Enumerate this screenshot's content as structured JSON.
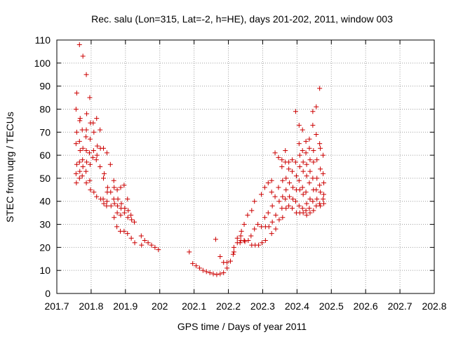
{
  "chart_data": {
    "type": "scatter",
    "title": "Rec. salu (Lon=315, Lat=-2, h=HE), days 201-202, 2011, window 003",
    "xlabel": "GPS time / Days of year 2011",
    "ylabel": "STEC from uqrg / TECUs",
    "xlim": [
      201.7,
      202.8
    ],
    "ylim": [
      0,
      110
    ],
    "xticks": [
      "201.7",
      "201.8",
      "201.9",
      "202",
      "202.1",
      "202.2",
      "202.3",
      "202.4",
      "202.5",
      "202.6",
      "202.7",
      "202.8"
    ],
    "yticks": [
      "0",
      "10",
      "20",
      "30",
      "40",
      "50",
      "60",
      "70",
      "80",
      "90",
      "100",
      "110"
    ],
    "grid": true,
    "marker": "+",
    "color": "#cc0000",
    "points": [
      [
        201.758,
        87
      ],
      [
        201.756,
        80
      ],
      [
        201.758,
        70
      ],
      [
        201.756,
        65
      ],
      [
        201.758,
        56
      ],
      [
        201.756,
        52
      ],
      [
        201.757,
        48
      ],
      [
        201.766,
        108
      ],
      [
        201.768,
        76
      ],
      [
        201.767,
        75
      ],
      [
        201.766,
        66
      ],
      [
        201.768,
        62
      ],
      [
        201.766,
        57
      ],
      [
        201.767,
        53
      ],
      [
        201.766,
        50
      ],
      [
        201.776,
        103
      ],
      [
        201.774,
        71
      ],
      [
        201.776,
        63
      ],
      [
        201.775,
        58
      ],
      [
        201.776,
        55
      ],
      [
        201.774,
        51
      ],
      [
        201.786,
        95
      ],
      [
        201.787,
        78
      ],
      [
        201.786,
        71
      ],
      [
        201.785,
        68
      ],
      [
        201.786,
        62
      ],
      [
        201.787,
        57
      ],
      [
        201.785,
        53
      ],
      [
        201.786,
        48
      ],
      [
        201.796,
        85
      ],
      [
        201.798,
        74
      ],
      [
        201.797,
        67
      ],
      [
        201.795,
        61
      ],
      [
        201.797,
        56
      ],
      [
        201.796,
        49
      ],
      [
        201.798,
        45
      ],
      [
        201.806,
        74
      ],
      [
        201.808,
        70
      ],
      [
        201.807,
        62
      ],
      [
        201.805,
        59
      ],
      [
        201.808,
        44
      ],
      [
        201.816,
        76
      ],
      [
        201.818,
        64
      ],
      [
        201.817,
        60
      ],
      [
        201.815,
        58
      ],
      [
        201.816,
        42
      ],
      [
        201.826,
        71
      ],
      [
        201.827,
        63
      ],
      [
        201.826,
        55
      ],
      [
        201.828,
        41
      ],
      [
        201.836,
        63
      ],
      [
        201.838,
        52
      ],
      [
        201.836,
        50
      ],
      [
        201.835,
        41
      ],
      [
        201.837,
        39
      ],
      [
        201.846,
        61
      ],
      [
        201.848,
        46
      ],
      [
        201.847,
        44
      ],
      [
        201.846,
        40
      ],
      [
        201.845,
        38
      ],
      [
        201.856,
        56
      ],
      [
        201.857,
        44
      ],
      [
        201.858,
        38
      ],
      [
        201.866,
        49
      ],
      [
        201.867,
        46
      ],
      [
        201.866,
        41
      ],
      [
        201.868,
        39
      ],
      [
        201.867,
        33
      ],
      [
        201.876,
        45
      ],
      [
        201.878,
        41
      ],
      [
        201.877,
        38
      ],
      [
        201.876,
        35
      ],
      [
        201.875,
        29
      ],
      [
        201.886,
        46
      ],
      [
        201.888,
        39
      ],
      [
        201.887,
        37
      ],
      [
        201.886,
        34
      ],
      [
        201.885,
        27
      ],
      [
        201.896,
        47
      ],
      [
        201.898,
        37
      ],
      [
        201.897,
        35
      ],
      [
        201.896,
        27
      ],
      [
        201.906,
        41
      ],
      [
        201.908,
        36
      ],
      [
        201.907,
        33
      ],
      [
        201.906,
        26
      ],
      [
        201.916,
        34
      ],
      [
        201.918,
        32
      ],
      [
        201.917,
        24
      ],
      [
        201.926,
        31
      ],
      [
        201.927,
        22
      ],
      [
        201.946,
        25
      ],
      [
        201.947,
        21
      ],
      [
        201.956,
        23
      ],
      [
        201.966,
        22
      ],
      [
        201.976,
        21
      ],
      [
        201.986,
        20
      ],
      [
        201.996,
        19
      ],
      [
        202.086,
        18
      ],
      [
        202.096,
        13
      ],
      [
        202.106,
        12
      ],
      [
        202.116,
        11
      ],
      [
        202.126,
        10
      ],
      [
        202.136,
        9.5
      ],
      [
        202.146,
        9
      ],
      [
        202.156,
        8.5
      ],
      [
        202.163,
        23.5
      ],
      [
        202.166,
        8.2
      ],
      [
        202.176,
        8.5
      ],
      [
        202.176,
        16
      ],
      [
        202.186,
        13.5
      ],
      [
        202.186,
        9
      ],
      [
        202.196,
        11
      ],
      [
        202.196,
        13.5
      ],
      [
        202.206,
        14
      ],
      [
        202.214,
        17
      ],
      [
        202.216,
        18
      ],
      [
        202.216,
        20
      ],
      [
        202.226,
        22
      ],
      [
        202.226,
        24
      ],
      [
        202.234,
        22
      ],
      [
        202.236,
        23
      ],
      [
        202.236,
        25
      ],
      [
        202.238,
        27
      ],
      [
        202.246,
        23
      ],
      [
        202.246,
        30
      ],
      [
        202.248,
        22.5
      ],
      [
        202.256,
        34
      ],
      [
        202.258,
        23
      ],
      [
        202.266,
        25
      ],
      [
        202.268,
        36
      ],
      [
        202.268,
        21
      ],
      [
        202.276,
        28
      ],
      [
        202.276,
        40
      ],
      [
        202.278,
        21
      ],
      [
        202.286,
        30
      ],
      [
        202.288,
        21
      ],
      [
        202.296,
        43
      ],
      [
        202.296,
        29
      ],
      [
        202.298,
        22
      ],
      [
        202.306,
        46
      ],
      [
        202.306,
        33
      ],
      [
        202.308,
        29
      ],
      [
        202.308,
        23
      ],
      [
        202.316,
        48
      ],
      [
        202.316,
        35
      ],
      [
        202.318,
        29
      ],
      [
        202.326,
        49
      ],
      [
        202.326,
        44
      ],
      [
        202.328,
        38
      ],
      [
        202.328,
        31
      ],
      [
        202.326,
        26
      ],
      [
        202.336,
        61
      ],
      [
        202.336,
        42
      ],
      [
        202.338,
        34
      ],
      [
        202.338,
        28
      ],
      [
        202.346,
        59
      ],
      [
        202.346,
        46
      ],
      [
        202.348,
        40
      ],
      [
        202.348,
        32
      ],
      [
        202.356,
        58
      ],
      [
        202.356,
        55
      ],
      [
        202.358,
        49
      ],
      [
        202.358,
        42
      ],
      [
        202.356,
        37
      ],
      [
        202.358,
        33
      ],
      [
        202.366,
        62
      ],
      [
        202.366,
        57
      ],
      [
        202.368,
        50
      ],
      [
        202.368,
        45
      ],
      [
        202.366,
        41
      ],
      [
        202.368,
        37
      ],
      [
        202.376,
        57
      ],
      [
        202.376,
        54
      ],
      [
        202.378,
        48
      ],
      [
        202.378,
        42
      ],
      [
        202.376,
        38
      ],
      [
        202.386,
        58
      ],
      [
        202.386,
        53
      ],
      [
        202.388,
        46
      ],
      [
        202.388,
        41
      ],
      [
        202.386,
        37
      ],
      [
        202.396,
        79
      ],
      [
        202.396,
        57
      ],
      [
        202.398,
        51
      ],
      [
        202.398,
        45
      ],
      [
        202.396,
        40
      ],
      [
        202.398,
        35
      ],
      [
        202.406,
        73
      ],
      [
        202.406,
        65
      ],
      [
        202.408,
        60
      ],
      [
        202.408,
        55
      ],
      [
        202.406,
        49
      ],
      [
        202.408,
        45
      ],
      [
        202.406,
        38
      ],
      [
        202.408,
        35
      ],
      [
        202.416,
        71
      ],
      [
        202.416,
        62
      ],
      [
        202.418,
        57
      ],
      [
        202.418,
        53
      ],
      [
        202.416,
        46
      ],
      [
        202.418,
        43
      ],
      [
        202.416,
        37
      ],
      [
        202.418,
        35
      ],
      [
        202.426,
        66
      ],
      [
        202.426,
        61
      ],
      [
        202.428,
        56
      ],
      [
        202.428,
        51
      ],
      [
        202.426,
        44
      ],
      [
        202.428,
        39
      ],
      [
        202.426,
        36
      ],
      [
        202.428,
        34
      ],
      [
        202.436,
        67
      ],
      [
        202.436,
        63
      ],
      [
        202.438,
        58
      ],
      [
        202.438,
        53
      ],
      [
        202.436,
        48
      ],
      [
        202.438,
        41
      ],
      [
        202.436,
        37
      ],
      [
        202.438,
        35
      ],
      [
        202.446,
        79
      ],
      [
        202.446,
        73
      ],
      [
        202.448,
        62
      ],
      [
        202.448,
        57
      ],
      [
        202.446,
        50
      ],
      [
        202.448,
        45
      ],
      [
        202.446,
        40
      ],
      [
        202.448,
        36
      ],
      [
        202.456,
        81
      ],
      [
        202.456,
        69
      ],
      [
        202.458,
        58
      ],
      [
        202.458,
        50
      ],
      [
        202.456,
        45
      ],
      [
        202.458,
        41
      ],
      [
        202.456,
        38
      ],
      [
        202.466,
        89
      ],
      [
        202.466,
        65
      ],
      [
        202.468,
        63
      ],
      [
        202.468,
        54
      ],
      [
        202.466,
        47
      ],
      [
        202.468,
        44
      ],
      [
        202.466,
        39
      ],
      [
        202.468,
        38
      ],
      [
        202.476,
        60
      ],
      [
        202.476,
        52
      ],
      [
        202.478,
        48
      ],
      [
        202.478,
        43
      ],
      [
        202.476,
        41
      ],
      [
        202.478,
        39
      ]
    ]
  }
}
